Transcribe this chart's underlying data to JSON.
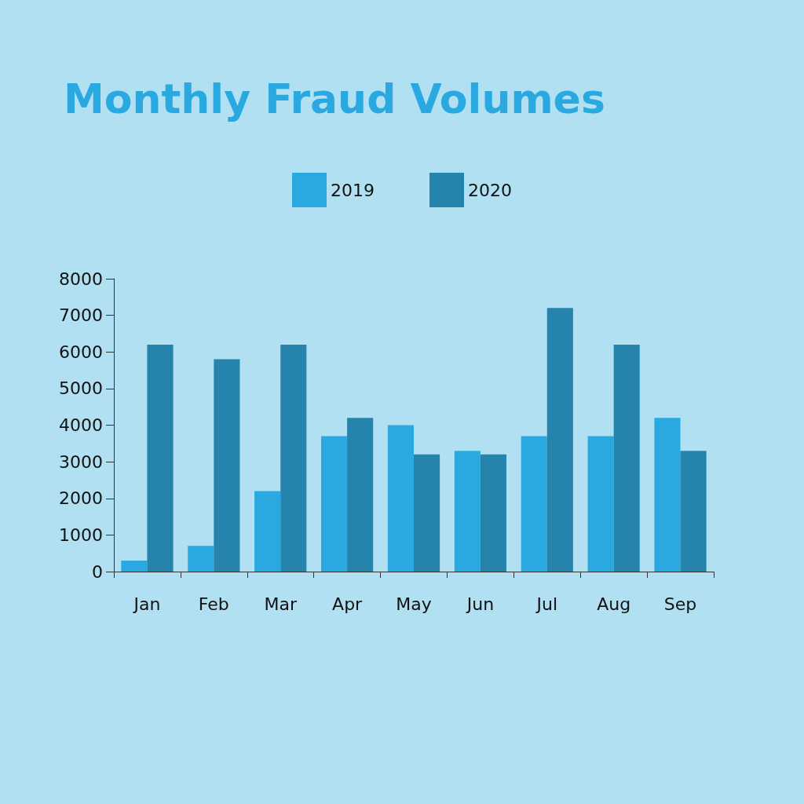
{
  "chart_data": {
    "type": "bar",
    "title": "Monthly Fraud Volumes",
    "categories": [
      "Jan",
      "Feb",
      "Mar",
      "Apr",
      "May",
      "Jun",
      "Jul",
      "Aug",
      "Sep"
    ],
    "series": [
      {
        "name": "2019",
        "color": "#29a9e0",
        "values": [
          300,
          700,
          2200,
          3700,
          4000,
          3300,
          3700,
          3700,
          4200
        ]
      },
      {
        "name": "2020",
        "color": "#2684ac",
        "values": [
          6200,
          5800,
          6200,
          4200,
          3200,
          3200,
          7200,
          6200,
          3300
        ]
      }
    ],
    "ylim": [
      0,
      8000
    ],
    "yticks": [
      0,
      1000,
      2000,
      3000,
      4000,
      5000,
      6000,
      7000,
      8000
    ],
    "grid": false,
    "legend": "top"
  }
}
